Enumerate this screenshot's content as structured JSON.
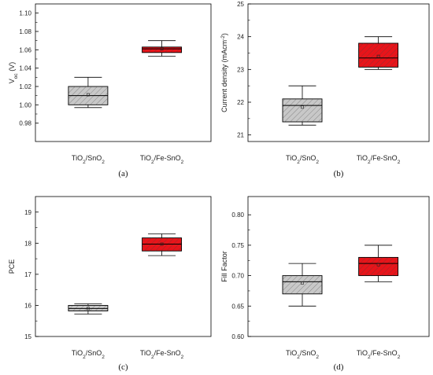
{
  "chart_data": [
    {
      "type": "box",
      "panel_label": "(a)",
      "ylabel": "V_oc (V)",
      "ylim": [
        0.96,
        1.11
      ],
      "yticks": [
        "0.98",
        "1.00",
        "1.02",
        "1.04",
        "1.06",
        "1.08",
        "1.10"
      ],
      "ytick_values": [
        0.98,
        1.0,
        1.02,
        1.04,
        1.06,
        1.08,
        1.1
      ],
      "categories": [
        "TiO_2/SnO_2",
        "TiO_2/Fe-SnO_2"
      ],
      "boxes": [
        {
          "whisker_low": 0.997,
          "q1": 1.0,
          "median": 1.01,
          "q3": 1.02,
          "whisker_high": 1.03,
          "mean": 1.011,
          "color": "#c8c8c8"
        },
        {
          "whisker_low": 1.053,
          "q1": 1.057,
          "median": 1.061,
          "q3": 1.063,
          "whisker_high": 1.07,
          "mean": 1.061,
          "color": "#e8141a"
        }
      ]
    },
    {
      "type": "box",
      "panel_label": "(b)",
      "ylabel": "Current density (mAcm^-2)",
      "ylim": [
        20.8,
        25.0
      ],
      "yticks": [
        "21",
        "22",
        "23",
        "24",
        "25"
      ],
      "ytick_values": [
        21,
        22,
        23,
        24,
        25
      ],
      "categories": [
        "TiO_2/SnO_2",
        "TiO_2/Fe-SnO_2"
      ],
      "boxes": [
        {
          "whisker_low": 21.3,
          "q1": 21.4,
          "median": 21.9,
          "q3": 22.1,
          "whisker_high": 22.5,
          "mean": 21.85,
          "color": "#c8c8c8"
        },
        {
          "whisker_low": 23.0,
          "q1": 23.07,
          "median": 23.35,
          "q3": 23.8,
          "whisker_high": 24.0,
          "mean": 23.4,
          "color": "#e8141a"
        }
      ]
    },
    {
      "type": "box",
      "panel_label": "(c)",
      "ylabel": "PCE",
      "ylim": [
        15.0,
        19.5
      ],
      "yticks": [
        "15",
        "16",
        "17",
        "18",
        "19"
      ],
      "ytick_values": [
        15,
        16,
        17,
        18,
        19
      ],
      "categories": [
        "TiO_2/SnO_2",
        "TiO_2/Fe-SnO_2"
      ],
      "boxes": [
        {
          "whisker_low": 15.72,
          "q1": 15.82,
          "median": 15.9,
          "q3": 16.0,
          "whisker_high": 16.05,
          "mean": 15.9,
          "color": "#c8c8c8"
        },
        {
          "whisker_low": 17.6,
          "q1": 17.75,
          "median": 17.97,
          "q3": 18.17,
          "whisker_high": 18.3,
          "mean": 17.97,
          "color": "#e8141a"
        }
      ]
    },
    {
      "type": "box",
      "panel_label": "(d)",
      "ylabel": "Fill Factor",
      "ylim": [
        0.6,
        0.83
      ],
      "yticks": [
        "0.60",
        "0.65",
        "0.70",
        "0.75",
        "0.80"
      ],
      "ytick_values": [
        0.6,
        0.65,
        0.7,
        0.75,
        0.8
      ],
      "categories": [
        "TiO_2/SnO_2",
        "TiO_2/Fe-SnO_2"
      ],
      "boxes": [
        {
          "whisker_low": 0.65,
          "q1": 0.67,
          "median": 0.69,
          "q3": 0.7,
          "whisker_high": 0.72,
          "mean": 0.688,
          "color": "#c8c8c8"
        },
        {
          "whisker_low": 0.69,
          "q1": 0.7,
          "median": 0.72,
          "q3": 0.73,
          "whisker_high": 0.75,
          "mean": 0.718,
          "color": "#e8141a"
        }
      ]
    }
  ]
}
